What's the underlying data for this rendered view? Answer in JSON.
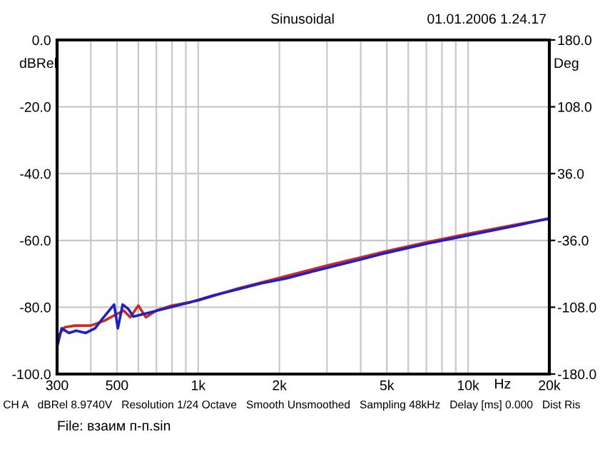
{
  "chart_data": {
    "type": "line",
    "title": "Sinusoidal",
    "ylabel": "dBRel",
    "y2label": "Deg",
    "xlabel": "Hz",
    "annotations": [
      "01.01.2006 1.24.17",
      "CH A   dBRel 8.9740V   Resolution 1/24 Octave   Smooth Unsmoothed   Sampling 48kHz   Delay [ms] 0.000   Dist Ris",
      "File: взаим п-п.sin"
    ],
    "log": "x",
    "grid": true,
    "line_style": "solid",
    "xlim": [
      300,
      20000
    ],
    "xticks": [
      300,
      {
        "value": 400,
        "label": null
      },
      500,
      {
        "value": 600,
        "label": null
      },
      {
        "value": 700,
        "label": null
      },
      {
        "value": 800,
        "label": null
      },
      {
        "value": 900,
        "label": null
      },
      {
        "value": 1000,
        "label": "1k"
      },
      {
        "value": 2000,
        "label": "2k"
      },
      {
        "value": 3000,
        "label": null
      },
      {
        "value": 4000,
        "label": null
      },
      {
        "value": 5000,
        "label": "5k"
      },
      {
        "value": 6000,
        "label": null
      },
      {
        "value": 7000,
        "label": null
      },
      {
        "value": 8000,
        "label": null
      },
      {
        "value": 9000,
        "label": null
      },
      {
        "value": 10000,
        "label": "10k"
      },
      {
        "value": 20000,
        "label": "20k"
      }
    ],
    "ylim": [
      -100,
      0
    ],
    "yticks": [
      {
        "value": 0,
        "label": "0.0"
      },
      {
        "value": -20,
        "label": "-20.0"
      },
      {
        "value": -40,
        "label": "-40.0"
      },
      {
        "value": -60,
        "label": "-60.0"
      },
      {
        "value": -80,
        "label": "-80.0"
      },
      {
        "value": -100,
        "label": "-100.0"
      }
    ],
    "y2lim": [
      -180,
      180
    ],
    "y2ticks": [
      {
        "value": 180,
        "label": "180.0"
      },
      {
        "value": 108,
        "label": "108.0"
      },
      {
        "value": 36,
        "label": "36.0"
      },
      {
        "value": -36,
        "label": "-36.0"
      },
      {
        "value": -108,
        "label": "-108.0"
      },
      {
        "value": -180,
        "label": "-180.0"
      }
    ],
    "series": [
      {
        "color": "#d02828",
        "x": [
          300,
          320,
          350,
          400,
          450,
          500,
          530,
          560,
          600,
          640,
          700,
          800,
          1000,
          1400,
          2000,
          3000,
          5000,
          7000,
          10000,
          15000,
          20000
        ],
        "values": [
          -89,
          -86,
          -85.5,
          -85.5,
          -84,
          -82,
          -81,
          -83,
          -79.5,
          -83,
          -81,
          -79.5,
          -78,
          -74.4,
          -71.2,
          -67.5,
          -63.2,
          -60.6,
          -58,
          -55.3,
          -53.5
        ]
      },
      {
        "color": "#2020c0",
        "x": [
          300,
          312,
          332,
          353,
          383,
          415,
          441,
          488,
          504,
          525,
          552,
          575,
          623,
          764,
          935,
          1146,
          1404,
          1719,
          2107,
          2690,
          5000,
          7000,
          10000,
          15000,
          20000
        ],
        "values": [
          -92,
          -86.3,
          -87.7,
          -87,
          -87.7,
          -86.3,
          -83.5,
          -79.2,
          -86.3,
          -79.2,
          -80.6,
          -82.8,
          -82.1,
          -80.3,
          -78.5,
          -76.4,
          -74.6,
          -72.8,
          -71.4,
          -69.2,
          -63.7,
          -61,
          -58.5,
          -55.6,
          -53.4
        ]
      }
    ]
  }
}
